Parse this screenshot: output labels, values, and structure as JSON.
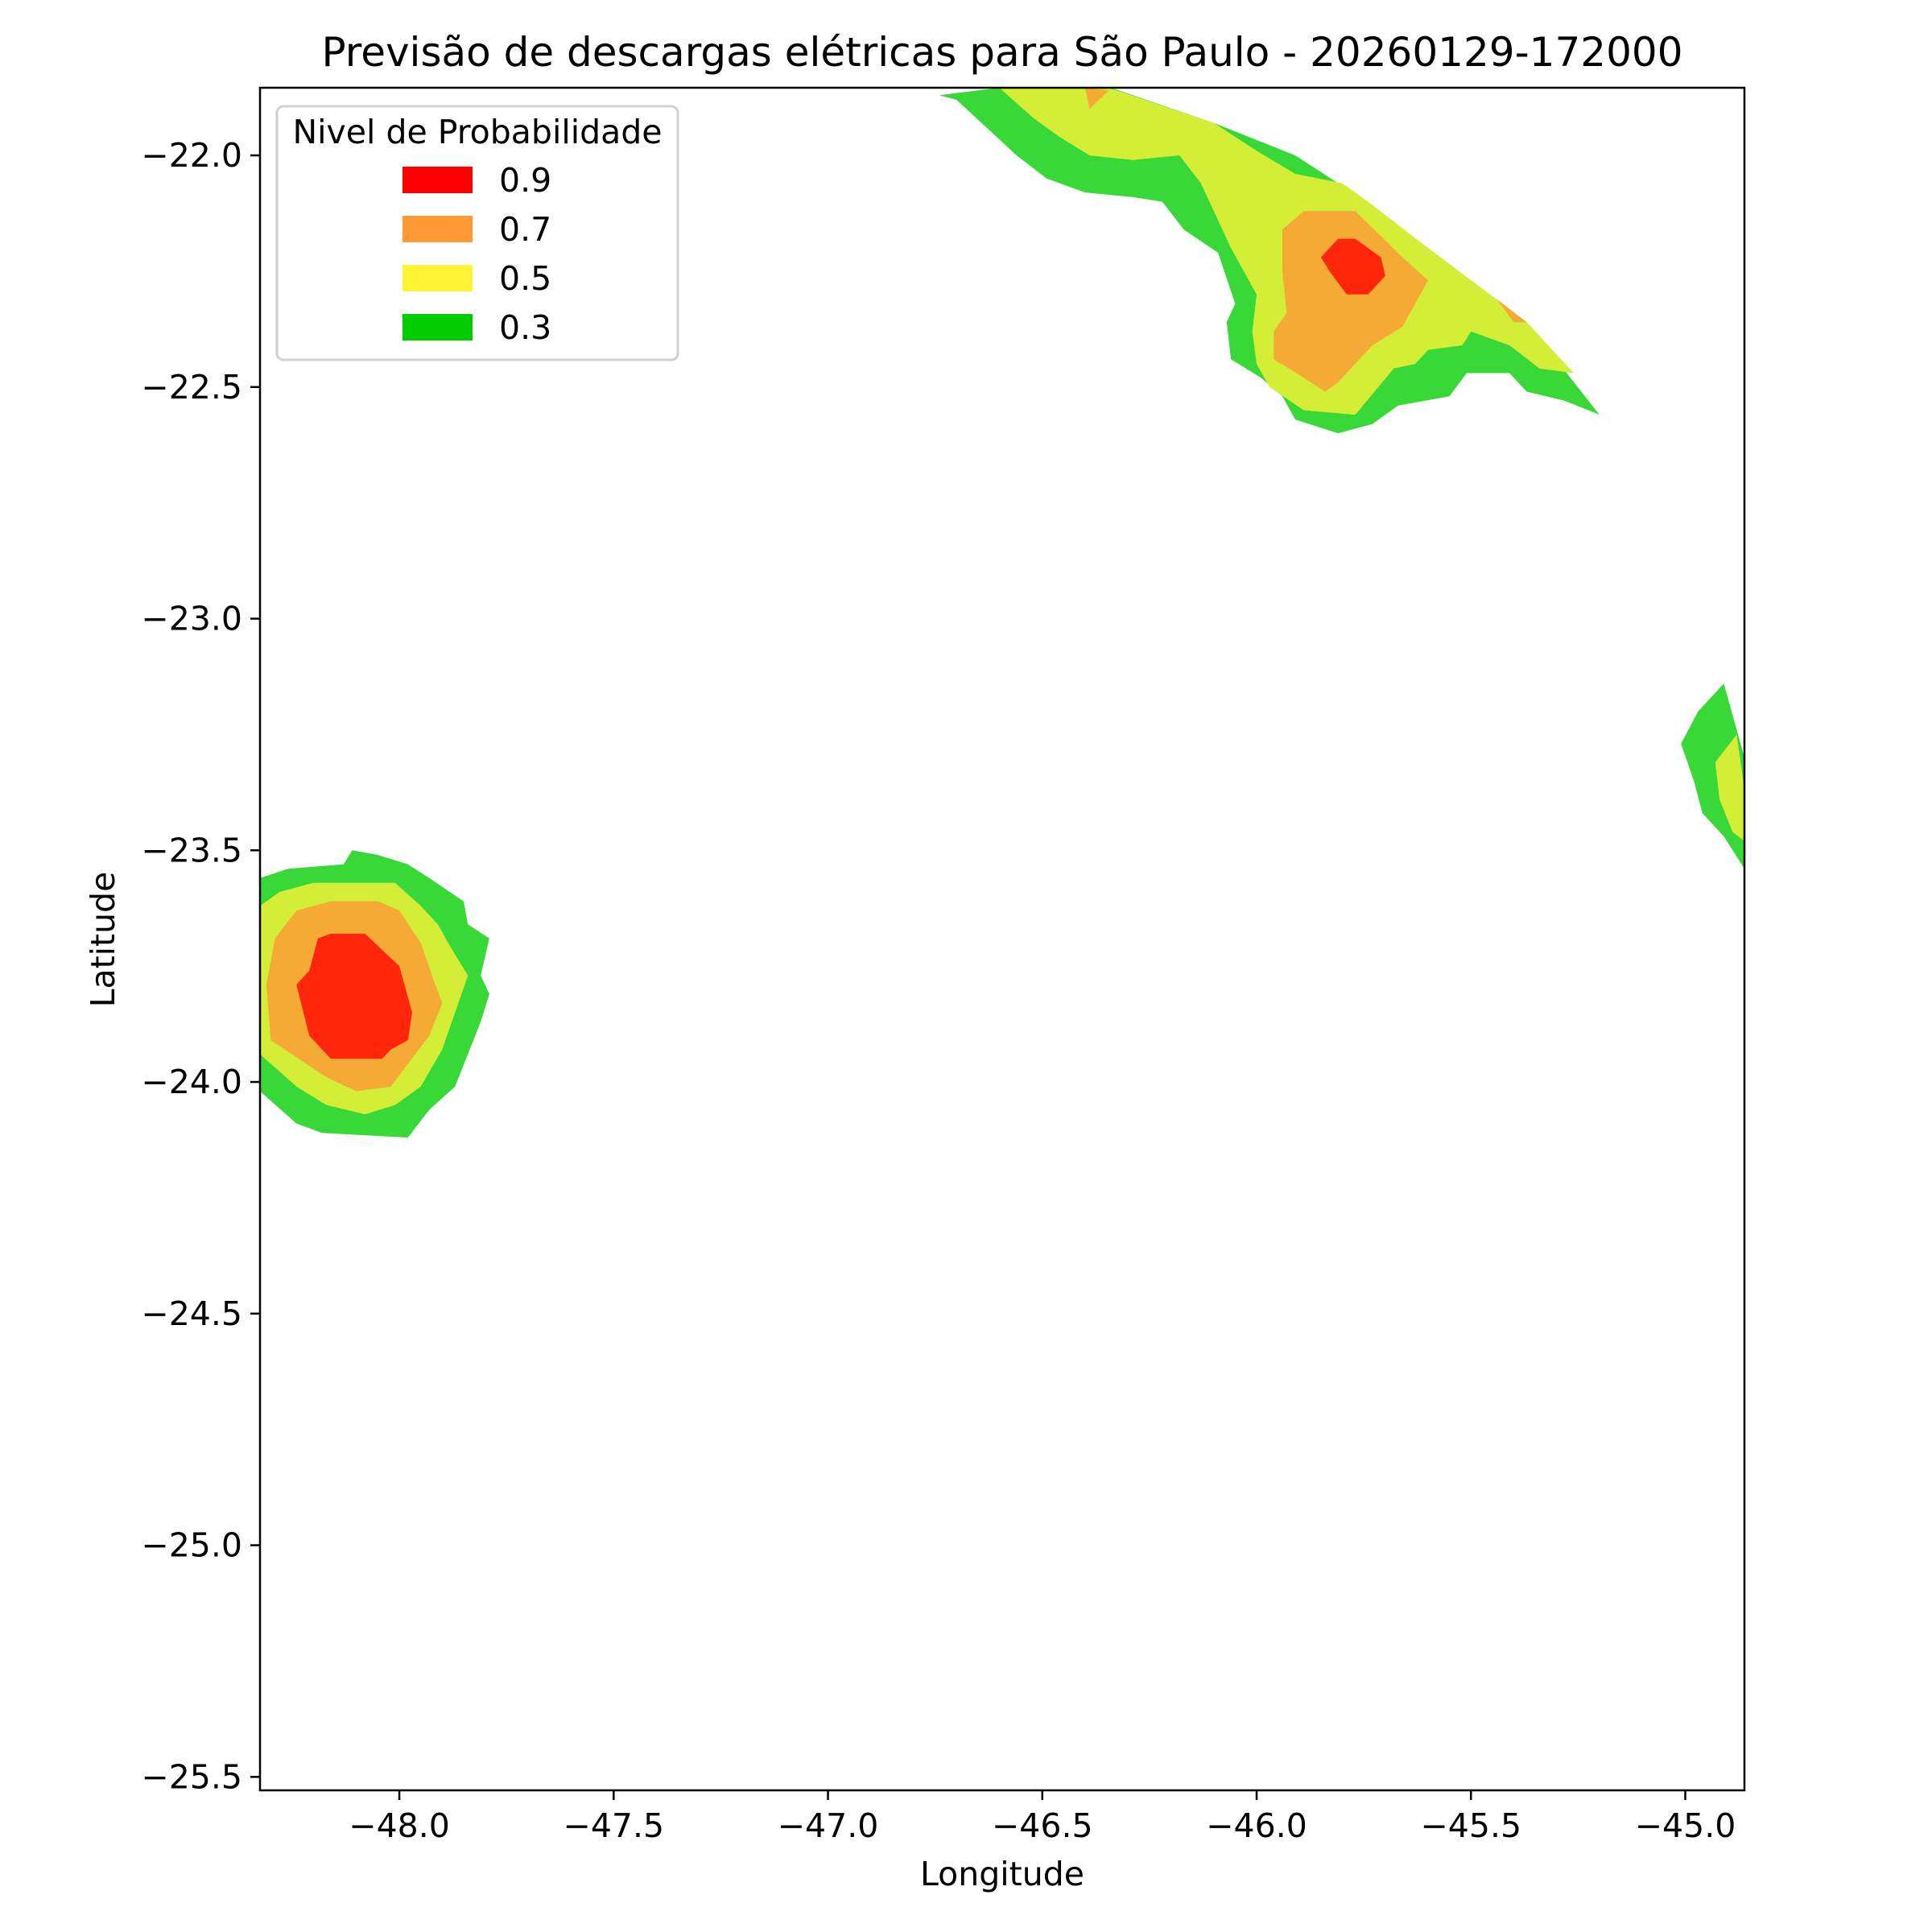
{
  "chart_data": {
    "type": "contour",
    "title": "Previsão de descargas elétricas para São Paulo - 20260129-172000",
    "xlabel": "Longitude",
    "ylabel": "Latitude",
    "xlim": [
      -48.325,
      -44.862
    ],
    "ylim": [
      -25.529,
      -21.854
    ],
    "x_ticks": [
      -48.0,
      -47.5,
      -47.0,
      -46.5,
      -46.0,
      -45.5,
      -45.0
    ],
    "x_tick_labels": [
      "−48.0",
      "−47.5",
      "−47.0",
      "−46.5",
      "−46.0",
      "−45.5",
      "−45.0"
    ],
    "y_ticks": [
      -22.0,
      -22.5,
      -23.0,
      -23.5,
      -24.0,
      -24.5,
      -25.0,
      -25.5
    ],
    "y_tick_labels": [
      "−22.0",
      "−22.5",
      "−23.0",
      "−23.5",
      "−24.0",
      "−24.5",
      "−25.0",
      "−25.5"
    ],
    "grid": false,
    "legend": {
      "title": "Nivel de Probabilidade",
      "placement": "top-left",
      "entries": [
        {
          "label": "0.9",
          "color": "#ff0000"
        },
        {
          "label": "0.7",
          "color": "#ff9933"
        },
        {
          "label": "0.5",
          "color": "#fff333"
        },
        {
          "label": "0.3",
          "color": "#00cc00"
        }
      ]
    },
    "level_fill_colors": {
      "0.3": "#38d838",
      "0.5": "#d4ee38",
      "0.7": "#f5aa35",
      "0.9": "#ff260c"
    },
    "regions": [
      {
        "name": "north",
        "level": "0.3",
        "polygon": [
          [
            -46.74,
            -21.87
          ],
          [
            -46.6,
            -21.854
          ],
          [
            -46.34,
            -21.854
          ],
          [
            -46.1,
            -21.93
          ],
          [
            -45.91,
            -22.0
          ],
          [
            -45.76,
            -22.09
          ],
          [
            -45.6,
            -22.2
          ],
          [
            -45.37,
            -22.36
          ],
          [
            -45.2,
            -22.56
          ],
          [
            -45.28,
            -22.53
          ],
          [
            -45.37,
            -22.51
          ],
          [
            -45.41,
            -22.47
          ],
          [
            -45.51,
            -22.47
          ],
          [
            -45.55,
            -22.52
          ],
          [
            -45.67,
            -22.54
          ],
          [
            -45.73,
            -22.58
          ],
          [
            -45.81,
            -22.6
          ],
          [
            -45.91,
            -22.57
          ],
          [
            -45.94,
            -22.52
          ],
          [
            -45.99,
            -22.48
          ],
          [
            -46.06,
            -22.44
          ],
          [
            -46.07,
            -22.36
          ],
          [
            -46.05,
            -22.32
          ],
          [
            -46.09,
            -22.21
          ],
          [
            -46.17,
            -22.16
          ],
          [
            -46.22,
            -22.1
          ],
          [
            -46.29,
            -22.09
          ],
          [
            -46.4,
            -22.08
          ],
          [
            -46.49,
            -22.05
          ],
          [
            -46.56,
            -22.0
          ],
          [
            -46.63,
            -21.94
          ],
          [
            -46.7,
            -21.88
          ]
        ]
      },
      {
        "name": "north",
        "level": "0.5",
        "polygon": [
          [
            -46.6,
            -21.854
          ],
          [
            -46.345,
            -21.854
          ],
          [
            -46.1,
            -21.93
          ],
          [
            -46.0,
            -21.99
          ],
          [
            -45.91,
            -22.04
          ],
          [
            -45.8,
            -22.06
          ],
          [
            -45.74,
            -22.1
          ],
          [
            -45.6,
            -22.2
          ],
          [
            -45.37,
            -22.36
          ],
          [
            -45.26,
            -22.47
          ],
          [
            -45.34,
            -22.46
          ],
          [
            -45.41,
            -22.41
          ],
          [
            -45.5,
            -22.38
          ],
          [
            -45.52,
            -22.41
          ],
          [
            -45.6,
            -22.42
          ],
          [
            -45.63,
            -22.45
          ],
          [
            -45.68,
            -22.46
          ],
          [
            -45.77,
            -22.56
          ],
          [
            -45.89,
            -22.55
          ],
          [
            -45.97,
            -22.5
          ],
          [
            -46.0,
            -22.45
          ],
          [
            -46.01,
            -22.38
          ],
          [
            -46.0,
            -22.3
          ],
          [
            -46.06,
            -22.2
          ],
          [
            -46.13,
            -22.06
          ],
          [
            -46.18,
            -22.0
          ],
          [
            -46.29,
            -22.01
          ],
          [
            -46.39,
            -22.0
          ],
          [
            -46.46,
            -21.96
          ],
          [
            -46.52,
            -21.92
          ]
        ]
      },
      {
        "name": "north",
        "level": "0.7",
        "polygon": [
          [
            -45.94,
            -22.16
          ],
          [
            -45.89,
            -22.12
          ],
          [
            -45.77,
            -22.12
          ],
          [
            -45.66,
            -22.22
          ],
          [
            -45.6,
            -22.27
          ],
          [
            -45.66,
            -22.37
          ],
          [
            -45.73,
            -22.41
          ],
          [
            -45.77,
            -22.45
          ],
          [
            -45.81,
            -22.49
          ],
          [
            -45.84,
            -22.51
          ],
          [
            -45.89,
            -22.48
          ],
          [
            -45.96,
            -22.44
          ],
          [
            -45.96,
            -22.38
          ],
          [
            -45.93,
            -22.34
          ],
          [
            -45.94,
            -22.25
          ]
        ]
      },
      {
        "name": "north-top",
        "level": "0.7",
        "polygon": [
          [
            -46.4,
            -21.854
          ],
          [
            -46.345,
            -21.86
          ],
          [
            -46.39,
            -21.9
          ]
        ]
      },
      {
        "name": "north-edge",
        "level": "0.7",
        "polygon": [
          [
            -45.44,
            -22.31
          ],
          [
            -45.37,
            -22.36
          ],
          [
            -45.4,
            -22.36
          ]
        ]
      },
      {
        "name": "north",
        "level": "0.9",
        "polygon": [
          [
            -45.81,
            -22.18
          ],
          [
            -45.77,
            -22.18
          ],
          [
            -45.71,
            -22.22
          ],
          [
            -45.7,
            -22.26
          ],
          [
            -45.74,
            -22.3
          ],
          [
            -45.79,
            -22.3
          ],
          [
            -45.83,
            -22.25
          ],
          [
            -45.85,
            -22.22
          ]
        ]
      },
      {
        "name": "west",
        "level": "0.3",
        "polygon": [
          [
            -48.325,
            -23.56
          ],
          [
            -48.26,
            -23.54
          ],
          [
            -48.13,
            -23.53
          ],
          [
            -48.11,
            -23.5
          ],
          [
            -48.05,
            -23.51
          ],
          [
            -47.98,
            -23.53
          ],
          [
            -47.93,
            -23.56
          ],
          [
            -47.85,
            -23.61
          ],
          [
            -47.84,
            -23.66
          ],
          [
            -47.79,
            -23.69
          ],
          [
            -47.81,
            -23.77
          ],
          [
            -47.79,
            -23.81
          ],
          [
            -47.81,
            -23.87
          ],
          [
            -47.84,
            -23.94
          ],
          [
            -47.87,
            -24.01
          ],
          [
            -47.93,
            -24.06
          ],
          [
            -47.98,
            -24.12
          ],
          [
            -48.18,
            -24.11
          ],
          [
            -48.24,
            -24.09
          ],
          [
            -48.325,
            -24.02
          ]
        ]
      },
      {
        "name": "west",
        "level": "0.5",
        "polygon": [
          [
            -48.325,
            -23.62
          ],
          [
            -48.28,
            -23.59
          ],
          [
            -48.2,
            -23.57
          ],
          [
            -48.01,
            -23.57
          ],
          [
            -47.95,
            -23.62
          ],
          [
            -47.91,
            -23.66
          ],
          [
            -47.88,
            -23.71
          ],
          [
            -47.84,
            -23.77
          ],
          [
            -47.87,
            -23.85
          ],
          [
            -47.9,
            -23.93
          ],
          [
            -47.95,
            -24.01
          ],
          [
            -48.01,
            -24.05
          ],
          [
            -48.08,
            -24.07
          ],
          [
            -48.17,
            -24.05
          ],
          [
            -48.24,
            -24.01
          ],
          [
            -48.325,
            -23.94
          ]
        ]
      },
      {
        "name": "west",
        "level": "0.7",
        "polygon": [
          [
            -48.29,
            -23.69
          ],
          [
            -48.24,
            -23.63
          ],
          [
            -48.16,
            -23.61
          ],
          [
            -48.05,
            -23.61
          ],
          [
            -48.0,
            -23.63
          ],
          [
            -47.95,
            -23.7
          ],
          [
            -47.92,
            -23.78
          ],
          [
            -47.9,
            -23.83
          ],
          [
            -47.93,
            -23.9
          ],
          [
            -48.02,
            -24.01
          ],
          [
            -48.1,
            -24.02
          ],
          [
            -48.17,
            -23.99
          ],
          [
            -48.3,
            -23.91
          ],
          [
            -48.31,
            -23.79
          ]
        ]
      },
      {
        "name": "west",
        "level": "0.9",
        "polygon": [
          [
            -48.19,
            -23.69
          ],
          [
            -48.16,
            -23.68
          ],
          [
            -48.08,
            -23.68
          ],
          [
            -48.0,
            -23.75
          ],
          [
            -47.97,
            -23.85
          ],
          [
            -47.98,
            -23.91
          ],
          [
            -48.02,
            -23.93
          ],
          [
            -48.04,
            -23.95
          ],
          [
            -48.16,
            -23.95
          ],
          [
            -48.21,
            -23.9
          ],
          [
            -48.24,
            -23.79
          ],
          [
            -48.21,
            -23.76
          ]
        ]
      },
      {
        "name": "east",
        "level": "0.3",
        "polygon": [
          [
            -45.01,
            -23.27
          ],
          [
            -44.97,
            -23.2
          ],
          [
            -44.91,
            -23.14
          ],
          [
            -44.862,
            -23.3
          ],
          [
            -44.862,
            -23.54
          ],
          [
            -44.91,
            -23.47
          ],
          [
            -44.96,
            -23.42
          ],
          [
            -44.98,
            -23.35
          ]
        ]
      },
      {
        "name": "east",
        "level": "0.5",
        "polygon": [
          [
            -44.93,
            -23.31
          ],
          [
            -44.88,
            -23.25
          ],
          [
            -44.862,
            -23.37
          ],
          [
            -44.862,
            -23.48
          ],
          [
            -44.89,
            -23.46
          ],
          [
            -44.92,
            -23.39
          ]
        ]
      }
    ]
  }
}
